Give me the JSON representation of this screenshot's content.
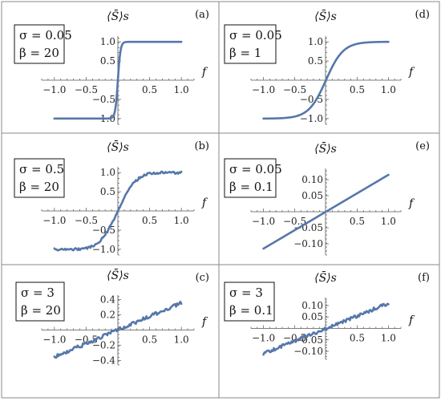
{
  "figure": {
    "colors": {
      "curve": "#5577aa",
      "axis": "#555555",
      "border": "#888888"
    },
    "x_axis_label": "f",
    "y_axis_label": "⟨S̄⟩s",
    "sigma_symbol": "σ",
    "beta_symbol": "β"
  },
  "chart_data": [
    {
      "panel": "(a)",
      "type": "line",
      "sigma_text": "σ = 0.05",
      "beta_text": "β = 20",
      "sigma": 0.05,
      "beta": 20,
      "model": "tanh",
      "noise": 0,
      "xlim": [
        -1.2,
        1.2
      ],
      "ylim": [
        -1.15,
        1.15
      ],
      "xticks": [
        -1.0,
        -0.5,
        0.5,
        1.0
      ],
      "xtick_labels": [
        "−1.0",
        "−0.5",
        "0.5",
        "1.0"
      ],
      "yticks": [
        -1.0,
        -0.5,
        0.5,
        1.0
      ],
      "ytick_labels": [
        "−1.0",
        "−0.5",
        "0.5",
        "1.0"
      ],
      "x": [
        -1.0,
        -0.5,
        -0.2,
        -0.1,
        -0.05,
        -0.03,
        -0.01,
        0.0,
        0.01,
        0.03,
        0.05,
        0.1,
        0.2,
        0.5,
        1.0
      ],
      "y": [
        -1.0,
        -1.0,
        -1.0,
        -1.0,
        -0.96,
        -0.76,
        -0.31,
        0.0,
        0.31,
        0.76,
        0.96,
        1.0,
        1.0,
        1.0,
        1.0
      ]
    },
    {
      "panel": "(b)",
      "type": "line",
      "sigma_text": "σ = 0.5",
      "beta_text": "β = 20",
      "sigma": 0.5,
      "beta": 20,
      "model": "erf",
      "noise": 0.03,
      "xlim": [
        -1.2,
        1.2
      ],
      "ylim": [
        -1.15,
        1.15
      ],
      "xticks": [
        -1.0,
        -0.5,
        0.5,
        1.0
      ],
      "xtick_labels": [
        "−1.0",
        "−0.5",
        "0.5",
        "1.0"
      ],
      "yticks": [
        -1.0,
        -0.5,
        0.5,
        1.0
      ],
      "ytick_labels": [
        "−1.0",
        "−0.5",
        "0.5",
        "1.0"
      ],
      "x": [
        -1.0,
        -0.6,
        -0.4,
        -0.3,
        -0.2,
        -0.1,
        0.0,
        0.1,
        0.2,
        0.3,
        0.4,
        0.6,
        1.0
      ],
      "y": [
        -1.0,
        -0.99,
        -0.93,
        -0.83,
        -0.61,
        -0.33,
        0.0,
        0.33,
        0.61,
        0.83,
        0.93,
        0.99,
        1.0
      ]
    },
    {
      "panel": "(c)",
      "type": "line",
      "sigma_text": "σ = 3",
      "beta_text": "β = 20",
      "sigma": 3,
      "beta": 20,
      "model": "linear",
      "slope": 0.36,
      "noise": 0.025,
      "xlim": [
        -1.2,
        1.2
      ],
      "ylim": [
        -0.46,
        0.46
      ],
      "xticks": [
        -1.0,
        -0.5,
        0.5,
        1.0
      ],
      "xtick_labels": [
        "−1.0",
        "−0.5",
        "0.5",
        "1.0"
      ],
      "yticks": [
        -0.4,
        -0.2,
        0.2,
        0.4
      ],
      "ytick_labels": [
        "−0.4",
        "−0.2",
        "0.2",
        "0.4"
      ],
      "x": [
        -1.0,
        -0.5,
        0.0,
        0.5,
        1.0
      ],
      "y": [
        -0.36,
        -0.18,
        0.0,
        0.18,
        0.36
      ]
    },
    {
      "panel": "(d)",
      "type": "line",
      "sigma_text": "σ = 0.05",
      "beta_text": "β = 1",
      "sigma": 0.05,
      "beta": 1,
      "model": "tanh",
      "noise": 0,
      "xlim": [
        -1.2,
        1.2
      ],
      "ylim": [
        -1.15,
        1.15
      ],
      "xticks": [
        -1.0,
        -0.5,
        0.5,
        1.0
      ],
      "xtick_labels": [
        "−1.0",
        "−0.5",
        "0.5",
        "1.0"
      ],
      "yticks": [
        -1.0,
        -0.5,
        0.5,
        1.0
      ],
      "ytick_labels": [
        "−1.0",
        "−0.5",
        "0.5",
        "1.0"
      ],
      "x": [
        -1.0,
        -0.6,
        -0.4,
        -0.3,
        -0.2,
        -0.1,
        0.0,
        0.1,
        0.2,
        0.3,
        0.4,
        0.6,
        1.0
      ],
      "y": [
        -1.0,
        -0.98,
        -0.92,
        -0.83,
        -0.64,
        -0.36,
        0.0,
        0.36,
        0.64,
        0.83,
        0.92,
        0.98,
        1.0
      ]
    },
    {
      "panel": "(e)",
      "type": "line",
      "sigma_text": "σ = 0.05",
      "beta_text": "β = 0.1",
      "sigma": 0.05,
      "beta": 0.1,
      "model": "linear",
      "slope": 0.115,
      "noise": 0,
      "xlim": [
        -1.2,
        1.2
      ],
      "ylim": [
        -0.135,
        0.135
      ],
      "xticks": [
        -1.0,
        -0.5,
        0.5,
        1.0
      ],
      "xtick_labels": [
        "−1.0",
        "−0.5",
        "0.5",
        "1.0"
      ],
      "yticks": [
        -0.1,
        -0.05,
        0.05,
        0.1
      ],
      "ytick_labels": [
        "−0.10",
        "−0.05",
        "0.05",
        "0.10"
      ],
      "x": [
        -1.0,
        -0.5,
        0.0,
        0.5,
        1.0
      ],
      "y": [
        -0.115,
        -0.058,
        0.0,
        0.058,
        0.115
      ]
    },
    {
      "panel": "(f)",
      "type": "line",
      "sigma_text": "σ = 3",
      "beta_text": "β = 0.1",
      "sigma": 3,
      "beta": 0.1,
      "model": "linear",
      "slope": 0.11,
      "noise": 0.007,
      "xlim": [
        -1.2,
        1.2
      ],
      "ylim": [
        -0.135,
        0.135
      ],
      "xticks": [
        -1.0,
        -0.5,
        0.5,
        1.0
      ],
      "xtick_labels": [
        "−1.0",
        "−0.5",
        "0.5",
        "1.0"
      ],
      "yticks": [
        -0.1,
        -0.05,
        0.05,
        0.1
      ],
      "ytick_labels": [
        "−0.10",
        "−0.05",
        "0.05",
        "0.10"
      ],
      "x": [
        -1.0,
        -0.5,
        0.0,
        0.5,
        1.0
      ],
      "y": [
        -0.11,
        -0.055,
        0.0,
        0.055,
        0.11
      ]
    }
  ]
}
